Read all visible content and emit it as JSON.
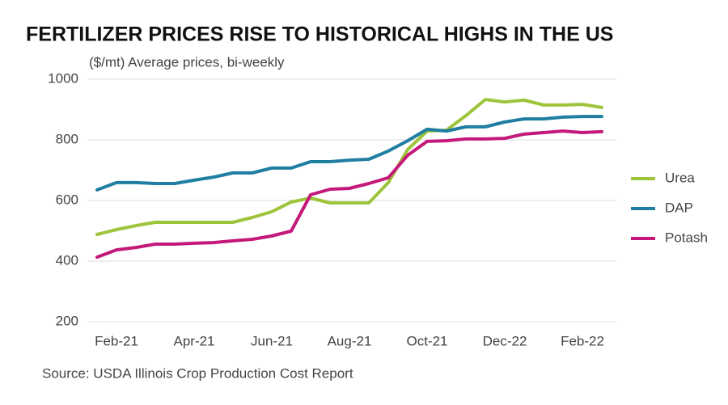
{
  "chart_data": {
    "type": "line",
    "title": "FERTILIZER PRICES RISE TO HISTORICAL HIGHS IN THE US",
    "subtitle": "($/mt) Average prices, bi-weekly",
    "source": "Source: USDA Illinois Crop Production Cost Report",
    "categories": [
      null,
      "Feb-21",
      null,
      null,
      null,
      "Apr-21",
      null,
      null,
      null,
      "Jun-21",
      null,
      null,
      null,
      "Aug-21",
      null,
      null,
      null,
      "Oct-21",
      null,
      null,
      null,
      "Dec-22",
      null,
      null,
      null,
      "Feb-22",
      null
    ],
    "series": [
      {
        "name": "Urea",
        "color": "#9dc43b",
        "values": [
          488,
          504,
          517,
          528,
          528,
          528,
          528,
          528,
          544,
          563,
          595,
          608,
          592,
          592,
          592,
          659,
          768,
          829,
          832,
          880,
          933,
          925,
          931,
          915,
          915,
          917,
          907
        ]
      },
      {
        "name": "DAP",
        "color": "#1f7ea1",
        "values": [
          635,
          659,
          659,
          656,
          656,
          667,
          677,
          691,
          691,
          707,
          707,
          728,
          728,
          733,
          736,
          763,
          797,
          835,
          829,
          843,
          843,
          859,
          869,
          869,
          875,
          877,
          877
        ]
      },
      {
        "name": "Potash",
        "color": "#c4197a",
        "values": [
          413,
          437,
          445,
          456,
          456,
          459,
          461,
          467,
          472,
          483,
          499,
          619,
          637,
          640,
          656,
          675,
          749,
          795,
          797,
          803,
          803,
          805,
          819,
          824,
          829,
          824,
          827
        ]
      }
    ],
    "ylim": [
      200,
      1000
    ],
    "yticks": [
      200,
      400,
      600,
      800,
      1000
    ],
    "grid": true,
    "legend": "right"
  }
}
